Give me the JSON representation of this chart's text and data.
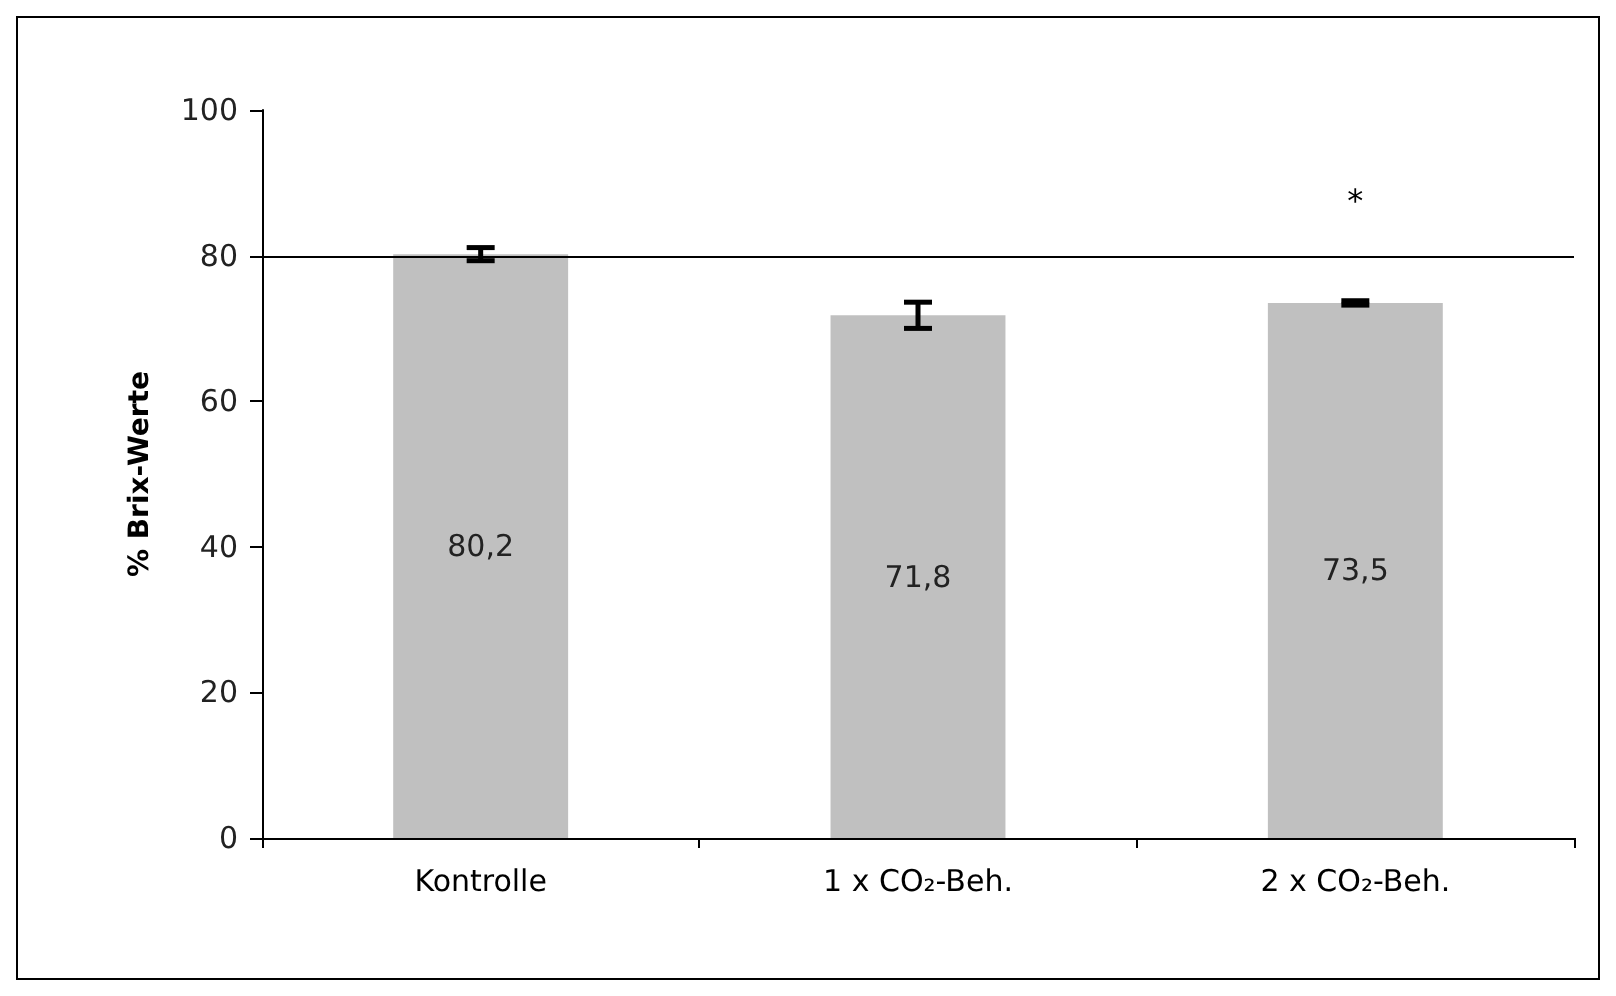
{
  "chart_data": {
    "type": "bar",
    "ylabel": "% Brix-Werte",
    "categories": [
      "Kontrolle",
      "1 x CO₂-Beh.",
      "2 x CO₂-Beh."
    ],
    "values": [
      80.2,
      71.8,
      73.5
    ],
    "value_labels": [
      "80,2",
      "71,8",
      "73,5"
    ],
    "errors": [
      0.9,
      1.8,
      0.3
    ],
    "color": "#c0c0c0",
    "ylim": [
      0,
      100
    ],
    "yticks": [
      0,
      20,
      40,
      60,
      80,
      100
    ],
    "grid": false,
    "ref_lines": [
      {
        "axis": "y",
        "value": 80,
        "label": null,
        "color": "#000000"
      }
    ],
    "annotations": [
      "*"
    ]
  }
}
